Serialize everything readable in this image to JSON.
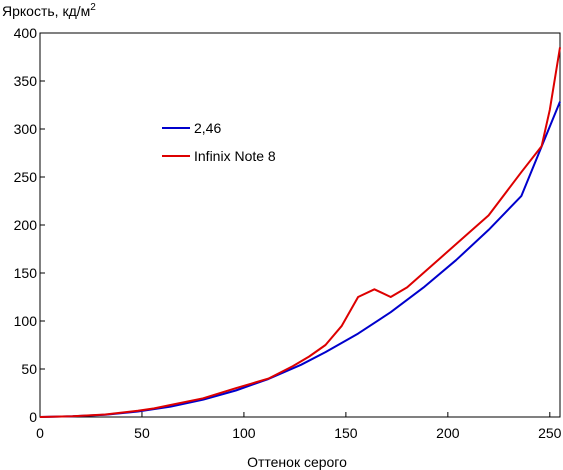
{
  "chart_data": {
    "type": "line",
    "title": "",
    "ylabel_main": "Яркость, кд/м",
    "ylabel_sup": "2",
    "xlabel": "Оттенок серого",
    "xlim": [
      0,
      255
    ],
    "ylim": [
      0,
      400
    ],
    "xticks": [
      0,
      50,
      100,
      150,
      200,
      250
    ],
    "yticks": [
      0,
      50,
      100,
      150,
      200,
      250,
      300,
      350,
      400
    ],
    "grid": false,
    "legend_position": "upper-left-inside",
    "series": [
      {
        "name": "2,46",
        "color": "#0000cc",
        "x": [
          0,
          16,
          32,
          48,
          64,
          80,
          96,
          112,
          128,
          140,
          156,
          172,
          188,
          204,
          220,
          236,
          255
        ],
        "y": [
          0,
          0.7,
          2.3,
          5.7,
          10.8,
          18.0,
          27.6,
          39.6,
          54.4,
          67.6,
          86.9,
          109.2,
          134.8,
          163.3,
          194.9,
          230.1,
          328.5
        ]
      },
      {
        "name": "Infinix Note 8",
        "color": "#dd0000",
        "x": [
          0,
          16,
          32,
          48,
          56,
          64,
          80,
          96,
          104,
          112,
          124,
          132,
          140,
          148,
          156,
          164,
          172,
          180,
          196,
          212,
          220,
          236,
          246,
          250,
          255
        ],
        "y": [
          0,
          0.8,
          2.6,
          6.5,
          9.0,
          12.5,
          19.5,
          30,
          35,
          40,
          53,
          63,
          75,
          95,
          125,
          133,
          125,
          135,
          165,
          195,
          210,
          255,
          282,
          320,
          385
        ]
      }
    ]
  }
}
